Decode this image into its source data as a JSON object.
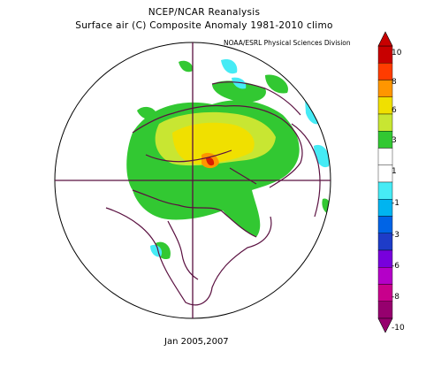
{
  "header": {
    "line1": "NCEP/NCAR Reanalysis",
    "line2": "Surface air (C) Composite Anomaly 1981-2010 climo",
    "credit": "NOAA/ESRL Physical Sciences Division"
  },
  "footer": {
    "date_label": "Jan 2005,2007"
  },
  "map": {
    "projection": "north-polar-stereographic",
    "variable": "Surface air temperature anomaly",
    "units": "C"
  },
  "colorbar": {
    "labels": [
      "10",
      "8",
      "6",
      "3",
      "1",
      "-1",
      "-3",
      "-6",
      "-8",
      "-10"
    ],
    "colors": [
      "#c80000",
      "#ff3c00",
      "#ff9600",
      "#f0e000",
      "#c8e632",
      "#32c832",
      "#ffffff",
      "#ffffff",
      "#46ebf5",
      "#00b4f0",
      "#0064e6",
      "#1e3cc8",
      "#7800dc",
      "#b400c8",
      "#c8008c",
      "#96006e"
    ]
  }
}
